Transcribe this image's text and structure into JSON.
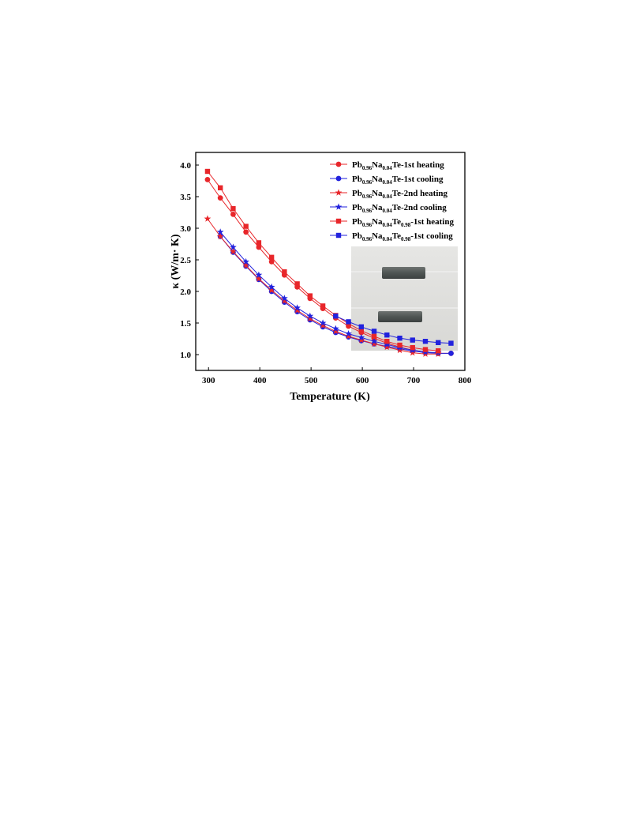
{
  "chart_data": {
    "type": "line",
    "xlabel": "Temperature (K)",
    "ylabel": "κ (W/m· K)",
    "xlim": [
      275,
      800
    ],
    "ylim": [
      0.75,
      4.2
    ],
    "xticks": [
      300,
      400,
      500,
      600,
      700,
      800
    ],
    "yticks": [
      1.0,
      1.5,
      2.0,
      2.5,
      3.0,
      3.5,
      4.0
    ],
    "legend_position": "top-right",
    "inset": "photograph of two gray rectangular bar samples",
    "series": [
      {
        "name": "Pb0.96Na0.04Te-1st heating",
        "label_parts": [
          [
            "Pb",
            ""
          ],
          [
            "0.96",
            "sub"
          ],
          [
            "Na",
            ""
          ],
          [
            "0.04",
            "sub"
          ],
          [
            "Te-1st heating",
            ""
          ]
        ],
        "color": "#e8262a",
        "marker": "circle",
        "x": [
          298,
          323,
          348,
          373,
          398,
          423,
          448,
          473,
          498,
          523,
          548,
          573,
          598,
          623,
          648,
          673,
          698,
          723,
          748,
          773
        ],
        "y": [
          3.77,
          3.48,
          3.22,
          2.94,
          2.7,
          2.47,
          2.26,
          2.07,
          1.89,
          1.73,
          1.58,
          1.45,
          1.35,
          1.26,
          1.18,
          1.12,
          1.07,
          1.04,
          1.02,
          1.02
        ]
      },
      {
        "name": "Pb0.96Na0.04Te-1st cooling",
        "label_parts": [
          [
            "Pb",
            ""
          ],
          [
            "0.96",
            "sub"
          ],
          [
            "Na",
            ""
          ],
          [
            "0.04",
            "sub"
          ],
          [
            "Te-1st cooling",
            ""
          ]
        ],
        "color": "#2222dd",
        "marker": "circle",
        "x": [
          323,
          348,
          373,
          398,
          423,
          448,
          473,
          498,
          523,
          548,
          573,
          598,
          623,
          648,
          673,
          698,
          723,
          748,
          773
        ],
        "y": [
          2.87,
          2.62,
          2.4,
          2.19,
          2.0,
          1.83,
          1.68,
          1.55,
          1.44,
          1.35,
          1.28,
          1.22,
          1.17,
          1.13,
          1.09,
          1.06,
          1.03,
          1.02,
          1.02
        ]
      },
      {
        "name": "Pb0.96Na0.04Te-2nd heating",
        "label_parts": [
          [
            "Pb",
            ""
          ],
          [
            "0.96",
            "sub"
          ],
          [
            "Na",
            ""
          ],
          [
            "0.04",
            "sub"
          ],
          [
            "Te-2nd heating",
            ""
          ]
        ],
        "color": "#e8262a",
        "marker": "star",
        "x": [
          298,
          323,
          348,
          373,
          398,
          423,
          448,
          473,
          498,
          523,
          548,
          573,
          598,
          623,
          648,
          673,
          698,
          723,
          748
        ],
        "y": [
          3.15,
          2.87,
          2.63,
          2.41,
          2.2,
          2.02,
          1.85,
          1.7,
          1.57,
          1.46,
          1.37,
          1.29,
          1.23,
          1.17,
          1.12,
          1.07,
          1.03,
          1.01,
          1.01
        ]
      },
      {
        "name": "Pb0.96Na0.04Te-2nd cooling",
        "label_parts": [
          [
            "Pb",
            ""
          ],
          [
            "0.96",
            "sub"
          ],
          [
            "Na",
            ""
          ],
          [
            "0.04",
            "sub"
          ],
          [
            "Te-2nd cooling",
            ""
          ]
        ],
        "color": "#2222dd",
        "marker": "star",
        "x": [
          323,
          348,
          373,
          398,
          423,
          448,
          473,
          498,
          523,
          548,
          573,
          598,
          623,
          648,
          673,
          698,
          723,
          748
        ],
        "y": [
          2.94,
          2.7,
          2.47,
          2.26,
          2.07,
          1.89,
          1.74,
          1.61,
          1.5,
          1.41,
          1.33,
          1.27,
          1.21,
          1.16,
          1.11,
          1.07,
          1.04,
          1.03
        ]
      },
      {
        "name": "Pb0.96Na0.04Te0.98-1st heating",
        "label_parts": [
          [
            "Pb",
            ""
          ],
          [
            "0.96",
            "sub"
          ],
          [
            "Na",
            ""
          ],
          [
            "0.04",
            "sub"
          ],
          [
            "Te",
            ""
          ],
          [
            "0.98",
            "sub"
          ],
          [
            "-1st heating",
            ""
          ]
        ],
        "color": "#e8262a",
        "marker": "square",
        "x": [
          298,
          323,
          348,
          373,
          398,
          423,
          448,
          473,
          498,
          523,
          548,
          573,
          598,
          623,
          648,
          673,
          698,
          723,
          748
        ],
        "y": [
          3.9,
          3.64,
          3.31,
          3.03,
          2.77,
          2.54,
          2.31,
          2.12,
          1.93,
          1.77,
          1.62,
          1.49,
          1.38,
          1.29,
          1.21,
          1.15,
          1.11,
          1.08,
          1.06
        ]
      },
      {
        "name": "Pb0.96Na0.04Te0.98-1st cooling",
        "label_parts": [
          [
            "Pb",
            ""
          ],
          [
            "0.96",
            "sub"
          ],
          [
            "Na",
            ""
          ],
          [
            "0.04",
            "sub"
          ],
          [
            "Te",
            ""
          ],
          [
            "0.98",
            "sub"
          ],
          [
            "-1st cooling",
            ""
          ]
        ],
        "color": "#2222dd",
        "marker": "square",
        "x": [
          548,
          573,
          598,
          623,
          648,
          673,
          698,
          723,
          748,
          773
        ],
        "y": [
          1.61,
          1.52,
          1.44,
          1.37,
          1.31,
          1.26,
          1.23,
          1.21,
          1.19,
          1.18
        ]
      }
    ]
  }
}
